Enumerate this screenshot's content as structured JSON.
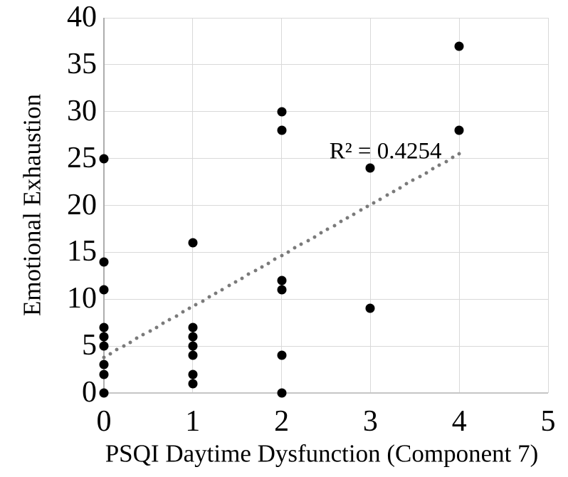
{
  "colors": {
    "background": "#ffffff",
    "point": "#000000",
    "trendline": "#7a7a7a",
    "gridline": "#d9d9d9",
    "axis_line_y": "#adadad",
    "axis_line_x": "#c6c6c6",
    "text": "#000000"
  },
  "chart_data": {
    "type": "scatter",
    "title": "",
    "xlabel": "PSQI Daytime Dysfunction (Component 7)",
    "ylabel": "Emotional Exhaustion",
    "xlim": [
      0,
      5
    ],
    "ylim": [
      0,
      40
    ],
    "xticks": [
      "0",
      "1",
      "2",
      "3",
      "4",
      "5"
    ],
    "yticks": [
      "0",
      "5",
      "10",
      "15",
      "20",
      "25",
      "30",
      "35",
      "40"
    ],
    "grid": true,
    "legend": "none",
    "points": [
      [
        0,
        0
      ],
      [
        0,
        2
      ],
      [
        0,
        3
      ],
      [
        0,
        5
      ],
      [
        0,
        6
      ],
      [
        0,
        7
      ],
      [
        0,
        11
      ],
      [
        0,
        14
      ],
      [
        0,
        25
      ],
      [
        1,
        1
      ],
      [
        1,
        2
      ],
      [
        1,
        4
      ],
      [
        1,
        5
      ],
      [
        1,
        6
      ],
      [
        1,
        7
      ],
      [
        1,
        16
      ],
      [
        2,
        0
      ],
      [
        2,
        4
      ],
      [
        2,
        11
      ],
      [
        2,
        12
      ],
      [
        2,
        28
      ],
      [
        2,
        30
      ],
      [
        3,
        9
      ],
      [
        3,
        24
      ],
      [
        4,
        28
      ],
      [
        4,
        37
      ]
    ],
    "trendline": {
      "style": "dotted",
      "x_start": 0,
      "y_start": 3.8,
      "x_end": 4,
      "y_end": 25.5
    },
    "annotation": {
      "text": "R² = 0.4254",
      "x": 3.17,
      "y": 25.7
    }
  }
}
